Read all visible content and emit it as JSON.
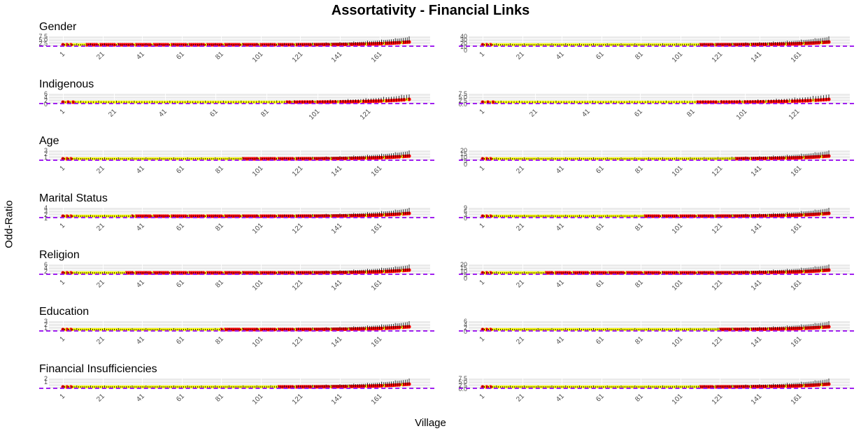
{
  "chart_data": {
    "type": "scatter",
    "title": "Assortativity - Financial Links",
    "xlabel": "Village",
    "ylabel": "Odd-Ratio",
    "reference_line": {
      "y": 1,
      "style": "dashed",
      "color": "#a020f0"
    },
    "point_colors": {
      "significant": "#ff0000",
      "not_significant": "#ffff00",
      "error_bar": "#000000"
    },
    "panels": [
      {
        "row": 1,
        "col": 1,
        "title": "Gender",
        "yticks": [
          "2.5",
          "5.0",
          "7.5"
        ],
        "xticks": [
          "1",
          "21",
          "41",
          "61",
          "81",
          "101",
          "121",
          "141",
          "161"
        ],
        "n": 176,
        "ymax": 8,
        "yellow_until": 12,
        "tail_max": 7.5
      },
      {
        "row": 1,
        "col": 2,
        "title": "",
        "yticks": [
          "0",
          "10",
          "20",
          "30",
          "40"
        ],
        "xticks": [
          "1",
          "21",
          "41",
          "61",
          "81",
          "101",
          "121",
          "141",
          "161"
        ],
        "n": 176,
        "ymax": 40,
        "yellow_until": 110,
        "tail_max": 30
      },
      {
        "row": 2,
        "col": 1,
        "title": "Indigenous",
        "yticks": [
          "0",
          "2",
          "4",
          "6"
        ],
        "xticks": [
          "1",
          "21",
          "41",
          "61",
          "81",
          "101",
          "121"
        ],
        "n": 137,
        "ymax": 6,
        "yellow_until": 88,
        "tail_max": 5
      },
      {
        "row": 2,
        "col": 2,
        "title": "",
        "yticks": [
          "0.0",
          "2.5",
          "5.0",
          "7.5"
        ],
        "xticks": [
          "1",
          "21",
          "41",
          "61",
          "81",
          "101",
          "121"
        ],
        "n": 133,
        "ymax": 7.5,
        "yellow_until": 82,
        "tail_max": 7
      },
      {
        "row": 3,
        "col": 1,
        "title": "Age",
        "yticks": [
          "1",
          "2",
          "3"
        ],
        "xticks": [
          "1",
          "21",
          "41",
          "61",
          "81",
          "101",
          "121",
          "141",
          "161"
        ],
        "n": 176,
        "ymax": 3,
        "yellow_until": 90,
        "tail_max": 2.9
      },
      {
        "row": 3,
        "col": 2,
        "title": "",
        "yticks": [
          "0",
          "5",
          "10",
          "15",
          "20"
        ],
        "xticks": [
          "1",
          "21",
          "41",
          "61",
          "81",
          "101",
          "121",
          "141",
          "161"
        ],
        "n": 176,
        "ymax": 20,
        "yellow_until": 128,
        "tail_max": 20
      },
      {
        "row": 4,
        "col": 1,
        "title": "Marital Status",
        "yticks": [
          "1",
          "2",
          "3",
          "4"
        ],
        "xticks": [
          "1",
          "21",
          "41",
          "61",
          "81",
          "101",
          "121",
          "141",
          "161"
        ],
        "n": 176,
        "ymax": 4,
        "yellow_until": 35,
        "tail_max": 4
      },
      {
        "row": 4,
        "col": 2,
        "title": "",
        "yticks": [
          "0",
          "3",
          "6",
          "9"
        ],
        "xticks": [
          "1",
          "21",
          "41",
          "61",
          "81",
          "101",
          "121",
          "141",
          "161"
        ],
        "n": 176,
        "ymax": 9,
        "yellow_until": 82,
        "tail_max": 8
      },
      {
        "row": 5,
        "col": 1,
        "title": "Religion",
        "yticks": [
          "2",
          "4",
          "6"
        ],
        "xticks": [
          "1",
          "21",
          "41",
          "61",
          "81",
          "101",
          "121",
          "141",
          "161"
        ],
        "n": 176,
        "ymax": 6,
        "yellow_until": 32,
        "tail_max": 6
      },
      {
        "row": 5,
        "col": 2,
        "title": "",
        "yticks": [
          "0",
          "5",
          "10",
          "15",
          "20"
        ],
        "xticks": [
          "1",
          "21",
          "41",
          "61",
          "81",
          "101",
          "121",
          "141",
          "161"
        ],
        "n": 176,
        "ymax": 20,
        "yellow_until": 32,
        "tail_max": 19
      },
      {
        "row": 6,
        "col": 1,
        "title": "Education",
        "yticks": [
          "1",
          "2",
          "3"
        ],
        "xticks": [
          "1",
          "21",
          "41",
          "61",
          "81",
          "101",
          "121",
          "141",
          "161"
        ],
        "n": 176,
        "ymax": 3,
        "yellow_until": 80,
        "tail_max": 2.9
      },
      {
        "row": 6,
        "col": 2,
        "title": "",
        "yticks": [
          "0",
          "2",
          "4",
          "6"
        ],
        "xticks": [
          "1",
          "21",
          "41",
          "61",
          "81",
          "101",
          "121",
          "141",
          "161"
        ],
        "n": 176,
        "ymax": 6,
        "yellow_until": 120,
        "tail_max": 6
      },
      {
        "row": 7,
        "col": 1,
        "title": "Financial Insufficiencies",
        "yticks": [
          "1",
          "2"
        ],
        "xticks": [
          "1",
          "21",
          "41",
          "61",
          "81",
          "101",
          "121",
          "141",
          "161"
        ],
        "n": 176,
        "ymax": 2.2,
        "yellow_until": 108,
        "tail_max": 2.1
      },
      {
        "row": 7,
        "col": 2,
        "title": "",
        "yticks": [
          "0.0",
          "2.5",
          "5.0",
          "7.5"
        ],
        "xticks": [
          "1",
          "21",
          "41",
          "61",
          "81",
          "101",
          "121",
          "141",
          "161"
        ],
        "n": 176,
        "ymax": 7.5,
        "yellow_until": 110,
        "tail_max": 7.5
      }
    ]
  }
}
